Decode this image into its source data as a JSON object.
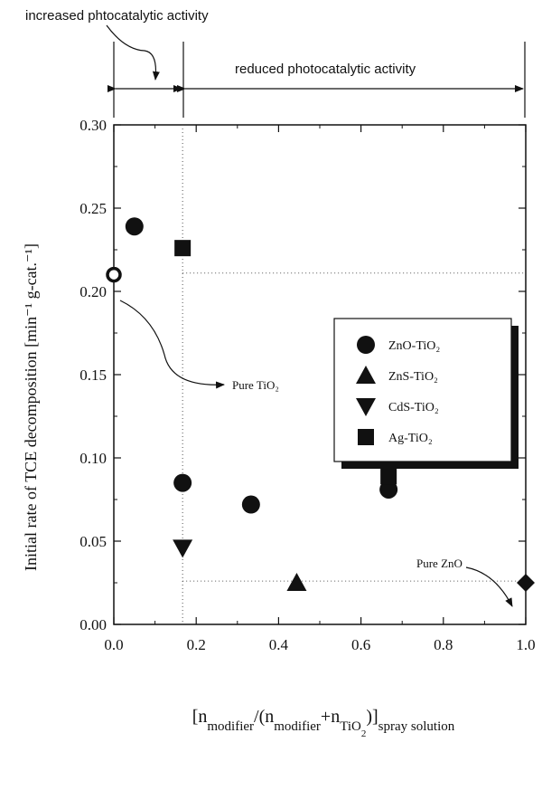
{
  "chart_data": {
    "type": "scatter",
    "ylabel": "Initial rate of TCE decomposition [min⁻¹ g-cat.⁻¹]",
    "xlabel": "[n_modifier/(n_modifier+n_TiO2)]_spray solution",
    "xlim": [
      0.0,
      1.0
    ],
    "ylim": [
      0.0,
      0.3
    ],
    "x_ticks": [
      "0.0",
      "0.2",
      "0.4",
      "0.6",
      "0.8",
      "1.0"
    ],
    "y_ticks": [
      "0.00",
      "0.05",
      "0.10",
      "0.15",
      "0.20",
      "0.25",
      "0.30"
    ],
    "grid": false,
    "legend_position": "middle-right",
    "series": [
      {
        "name": "ZnO-TiO₂",
        "marker": "circle",
        "x": [
          0.05,
          0.167,
          0.333,
          0.667
        ],
        "y": [
          0.239,
          0.085,
          0.072,
          0.081
        ]
      },
      {
        "name": "ZnS-TiO₂",
        "marker": "triangle-up",
        "x": [
          0.444
        ],
        "y": [
          0.025
        ]
      },
      {
        "name": "CdS-TiO₂",
        "marker": "triangle-down",
        "x": [
          0.167
        ],
        "y": [
          0.046
        ]
      },
      {
        "name": "Ag-TiO₂",
        "marker": "square",
        "x": [
          0.167,
          0.667
        ],
        "y": [
          0.226,
          0.089
        ]
      }
    ],
    "special_points": [
      {
        "label": "Pure TiO₂",
        "marker": "open-circle",
        "x": 0.0,
        "y": 0.21
      },
      {
        "label": "Pure ZnO",
        "marker": "diamond",
        "x": 1.0,
        "y": 0.025
      }
    ],
    "reference_lines": {
      "x": [
        0.167
      ],
      "y": [
        0.211,
        0.026
      ]
    },
    "annotations": {
      "increased": "increased phtocatalytic activity",
      "reduced": "reduced photocatalytic activity",
      "pure_tio2": "Pure TiO₂",
      "pure_zno": "Pure ZnO"
    }
  }
}
